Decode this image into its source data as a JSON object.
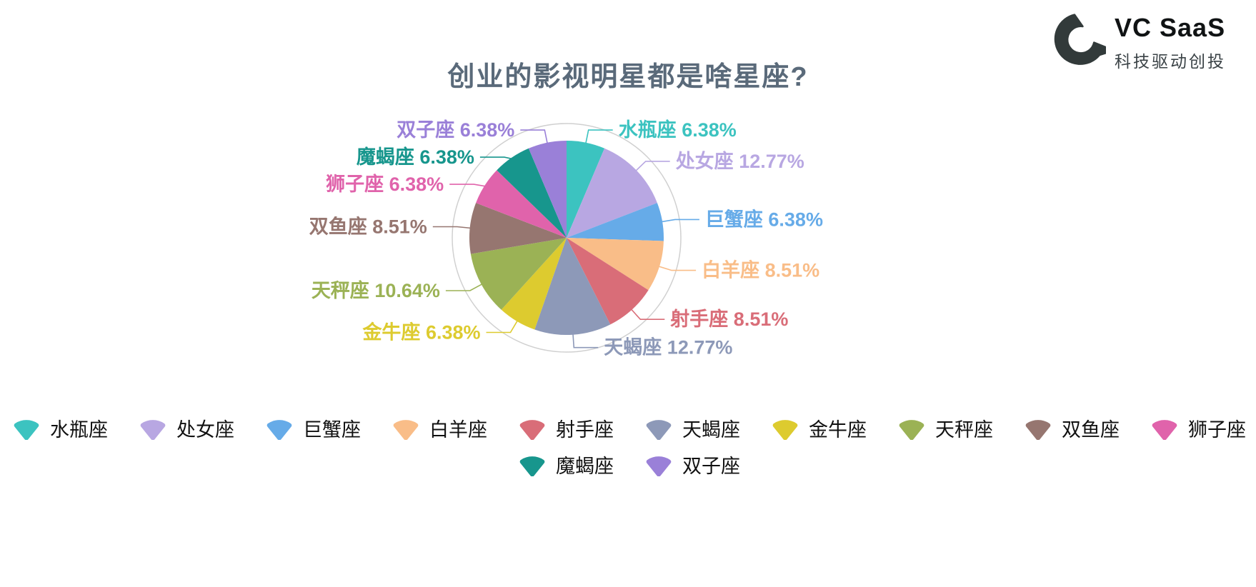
{
  "logo": {
    "name": "VC SaaS",
    "tagline": "科技驱动创投"
  },
  "chart_data": {
    "type": "pie",
    "title": "创业的影视明星都是啥星座?",
    "direction": "clockwise",
    "start_angle": "top",
    "legend_position": "bottom",
    "outer_ring": true,
    "series": [
      {
        "name": "水瓶座",
        "value": 6.38,
        "percent_label": "6.38%",
        "color": "#3cc3c0"
      },
      {
        "name": "处女座",
        "value": 12.77,
        "percent_label": "12.77%",
        "color": "#b8a7e2"
      },
      {
        "name": "巨蟹座",
        "value": 6.38,
        "percent_label": "6.38%",
        "color": "#66abe8"
      },
      {
        "name": "白羊座",
        "value": 8.51,
        "percent_label": "8.51%",
        "color": "#f9bd88"
      },
      {
        "name": "射手座",
        "value": 8.51,
        "percent_label": "8.51%",
        "color": "#d96d78"
      },
      {
        "name": "天蝎座",
        "value": 12.77,
        "percent_label": "12.77%",
        "color": "#8d99b8"
      },
      {
        "name": "金牛座",
        "value": 6.38,
        "percent_label": "6.38%",
        "color": "#ddcb2f"
      },
      {
        "name": "天秤座",
        "value": 10.64,
        "percent_label": "10.64%",
        "color": "#9bb255"
      },
      {
        "name": "双鱼座",
        "value": 8.51,
        "percent_label": "8.51%",
        "color": "#967670"
      },
      {
        "name": "狮子座",
        "value": 6.38,
        "percent_label": "6.38%",
        "color": "#e063ab"
      },
      {
        "name": "魔蝎座",
        "value": 6.38,
        "percent_label": "6.38%",
        "color": "#17968d"
      },
      {
        "name": "双子座",
        "value": 6.38,
        "percent_label": "6.38%",
        "color": "#9a80d8"
      }
    ]
  }
}
